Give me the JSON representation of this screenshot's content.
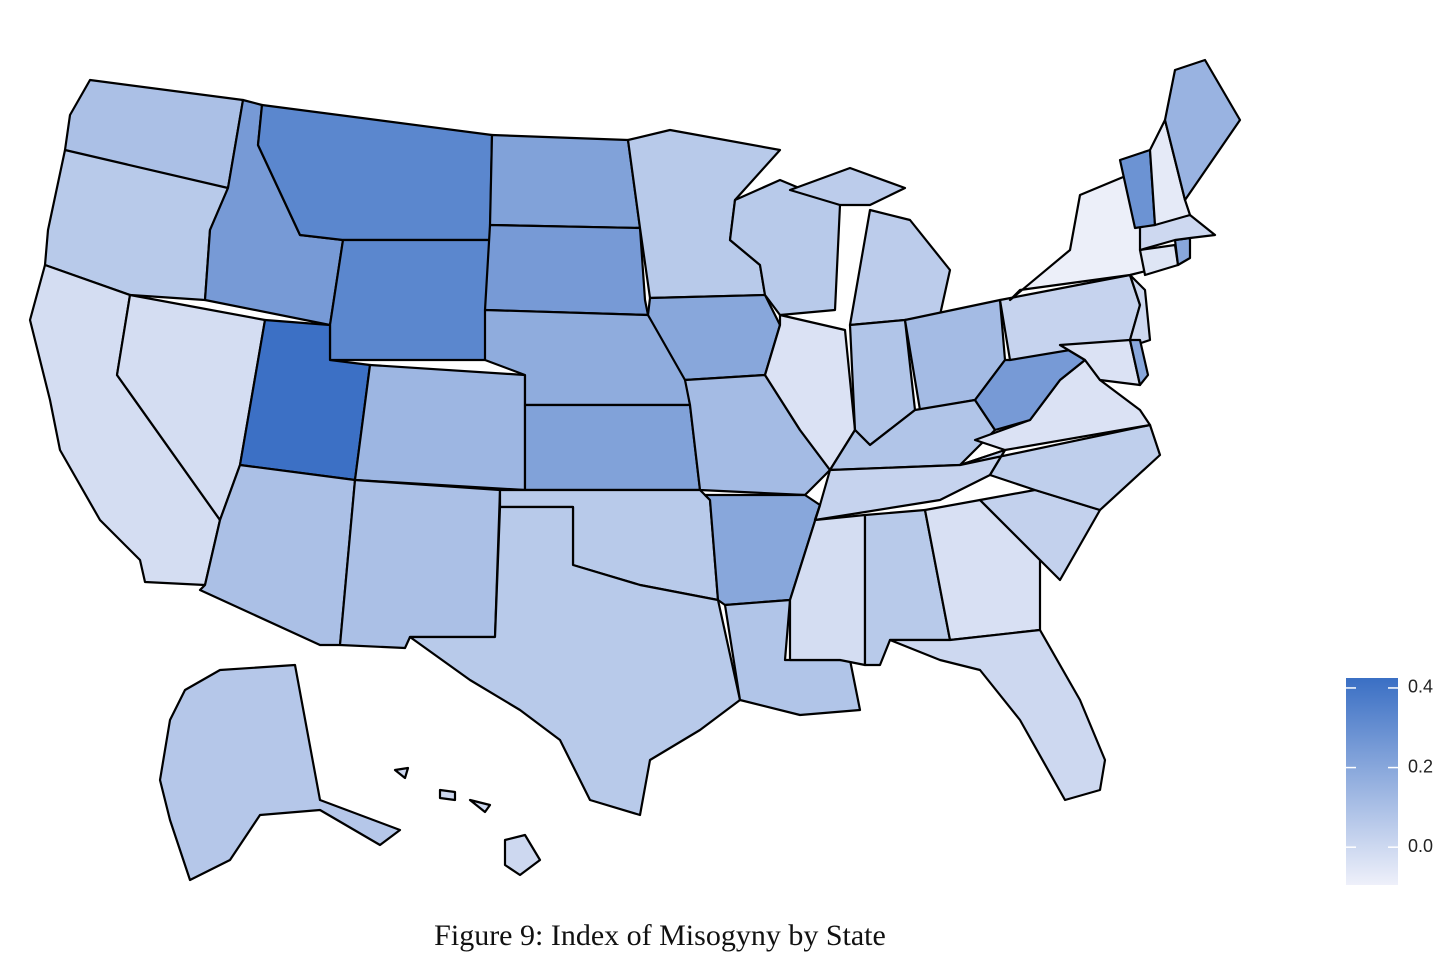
{
  "chart_data": {
    "type": "choropleth",
    "title": "Figure 9: Index of Misogyny by State",
    "values": [
      0.1,
      0.06,
      -0.02,
      -0.02,
      0.25,
      0.33,
      0.33,
      0.42,
      0.1,
      0.14,
      0.1,
      0.22,
      0.25,
      0.18,
      0.22,
      0.06,
      0.06,
      0.06,
      0.2,
      0.12,
      0.2,
      0.08,
      0.06,
      -0.04,
      0.05,
      0.08,
      0.12,
      0.08,
      0.02,
      -0.02,
      0.06,
      -0.03,
      0.0,
      0.03,
      0.04,
      -0.04,
      0.25,
      0.02,
      -0.09,
      0.0,
      -0.04,
      0.2,
      -0.05,
      0.2,
      0.0,
      0.28,
      -0.07,
      0.15,
      0.07,
      0.0
    ],
    "colors": [
      "#eef0fa",
      "#3a6fc4"
    ],
    "ylim": [
      -0.095,
      0.425
    ],
    "yticks": [
      {
        "value": 0,
        "label": "0.0"
      },
      0.2,
      0.4
    ]
  }
}
